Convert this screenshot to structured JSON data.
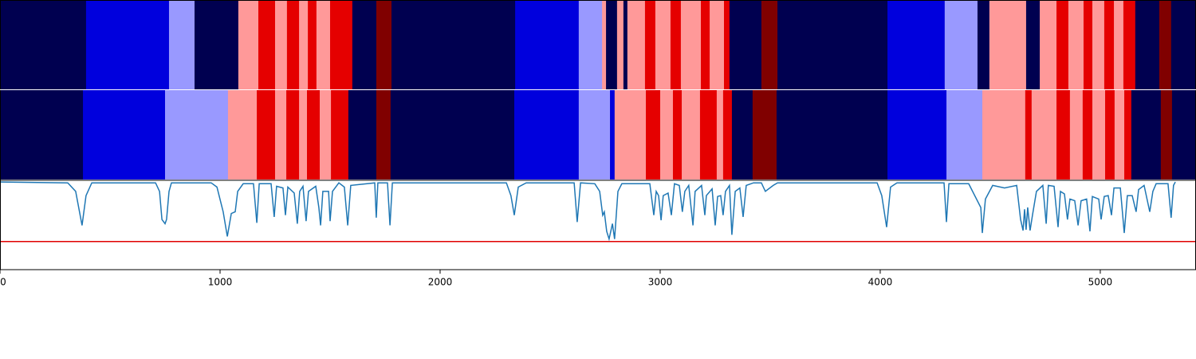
{
  "chart_data": {
    "type": "segments",
    "xlim": [
      0,
      5435
    ],
    "xticks": [
      0,
      1000,
      2000,
      3000,
      4000,
      5000
    ],
    "palette": [
      "#000050",
      "#0000dd",
      "#9999ff",
      "#ff9999",
      "#e50000",
      "#800000"
    ],
    "bands": [
      {
        "edges": [
          0,
          391,
          768,
          884,
          1083,
          1174,
          1250,
          1304,
          1359,
          1399,
          1438,
          1500,
          1601,
          1710,
          1779,
          2341,
          2630,
          2736,
          2754,
          2804,
          2833,
          2851,
          2931,
          2978,
          3047,
          3094,
          3185,
          3225,
          3290,
          3315,
          3460,
          3533,
          4033,
          4293,
          4442,
          4496,
          4663,
          4725,
          4801,
          4855,
          4924,
          4964,
          5018,
          5062,
          5105,
          5159,
          5268,
          5322,
          5435
        ],
        "states": [
          0,
          1,
          2,
          0,
          3,
          4,
          3,
          4,
          3,
          4,
          3,
          4,
          0,
          5,
          0,
          1,
          2,
          3,
          0,
          3,
          0,
          3,
          4,
          3,
          4,
          3,
          4,
          3,
          4,
          0,
          5,
          0,
          1,
          2,
          0,
          3,
          0,
          3,
          4,
          3,
          4,
          3,
          4,
          3,
          4,
          0,
          5,
          0
        ]
      },
      {
        "edges": [
          0,
          377,
          750,
          1036,
          1167,
          1250,
          1301,
          1359,
          1395,
          1453,
          1504,
          1583,
          1710,
          1775,
          2337,
          2630,
          2772,
          2793,
          2935,
          3000,
          3058,
          3098,
          3181,
          3257,
          3286,
          3326,
          3420,
          3529,
          4033,
          4301,
          4464,
          4659,
          4688,
          4801,
          4862,
          4920,
          4964,
          5022,
          5065,
          5109,
          5141,
          5275,
          5326,
          5435
        ],
        "states": [
          0,
          1,
          2,
          3,
          4,
          3,
          4,
          3,
          4,
          3,
          4,
          0,
          5,
          0,
          1,
          2,
          1,
          3,
          4,
          3,
          4,
          3,
          4,
          3,
          4,
          0,
          5,
          0,
          1,
          2,
          3,
          4,
          3,
          4,
          3,
          4,
          3,
          4,
          3,
          4,
          0,
          5,
          0
        ]
      }
    ],
    "line": {
      "color": "#1f77b4",
      "x": [
        0,
        308,
        344,
        373,
        391,
        417,
        707,
        725,
        736,
        750,
        757,
        768,
        779,
        960,
        986,
        1014,
        1033,
        1051,
        1069,
        1080,
        1105,
        1152,
        1167,
        1178,
        1232,
        1246,
        1257,
        1286,
        1297,
        1308,
        1337,
        1351,
        1362,
        1377,
        1391,
        1402,
        1435,
        1449,
        1457,
        1467,
        1493,
        1500,
        1511,
        1540,
        1565,
        1580,
        1594,
        1703,
        1710,
        1717,
        1761,
        1772,
        1783,
        2301,
        2322,
        2337,
        2355,
        2391,
        2609,
        2623,
        2638,
        2703,
        2725,
        2739,
        2746,
        2757,
        2768,
        2783,
        2793,
        2808,
        2826,
        2953,
        2971,
        2982,
        2993,
        3004,
        3014,
        3036,
        3051,
        3065,
        3087,
        3101,
        3112,
        3130,
        3149,
        3159,
        3188,
        3203,
        3210,
        3236,
        3250,
        3261,
        3275,
        3286,
        3297,
        3315,
        3326,
        3341,
        3362,
        3377,
        3391,
        3424,
        3460,
        3478,
        3514,
        3533,
        3986,
        4007,
        4029,
        4047,
        4076,
        4290,
        4301,
        4312,
        4348,
        4402,
        4457,
        4464,
        4478,
        4511,
        4565,
        4620,
        4638,
        4649,
        4656,
        4663,
        4670,
        4681,
        4692,
        4710,
        4739,
        4754,
        4764,
        4790,
        4808,
        4819,
        4837,
        4851,
        4862,
        4884,
        4899,
        4913,
        4938,
        4953,
        4964,
        4993,
        5004,
        5018,
        5036,
        5051,
        5062,
        5091,
        5109,
        5123,
        5145,
        5163,
        5174,
        5199,
        5225,
        5239,
        5254,
        5308,
        5322,
        5333,
        5341
      ],
      "values": [
        1.0,
        0.99,
        0.89,
        0.49,
        0.84,
        0.99,
        0.99,
        0.89,
        0.56,
        0.51,
        0.56,
        0.89,
        0.99,
        0.99,
        0.94,
        0.65,
        0.36,
        0.63,
        0.65,
        0.89,
        0.98,
        0.98,
        0.52,
        0.98,
        0.98,
        0.59,
        0.95,
        0.93,
        0.61,
        0.94,
        0.87,
        0.51,
        0.89,
        0.95,
        0.54,
        0.89,
        0.95,
        0.7,
        0.49,
        0.89,
        0.89,
        0.54,
        0.89,
        0.99,
        0.94,
        0.49,
        0.96,
        0.99,
        0.58,
        0.99,
        0.99,
        0.49,
        0.99,
        0.99,
        0.84,
        0.61,
        0.94,
        0.99,
        0.99,
        0.53,
        0.99,
        0.98,
        0.89,
        0.61,
        0.65,
        0.42,
        0.33,
        0.51,
        0.33,
        0.89,
        0.98,
        0.98,
        0.61,
        0.89,
        0.84,
        0.55,
        0.84,
        0.87,
        0.61,
        0.98,
        0.96,
        0.65,
        0.89,
        0.96,
        0.49,
        0.89,
        0.96,
        0.61,
        0.84,
        0.92,
        0.49,
        0.83,
        0.84,
        0.61,
        0.89,
        0.96,
        0.38,
        0.89,
        0.93,
        0.59,
        0.96,
        0.99,
        0.99,
        0.89,
        0.96,
        0.99,
        0.99,
        0.84,
        0.47,
        0.94,
        0.99,
        0.99,
        0.53,
        0.98,
        0.98,
        0.98,
        0.7,
        0.4,
        0.8,
        0.96,
        0.93,
        0.96,
        0.56,
        0.43,
        0.68,
        0.44,
        0.7,
        0.43,
        0.61,
        0.89,
        0.96,
        0.51,
        0.96,
        0.95,
        0.47,
        0.89,
        0.86,
        0.56,
        0.8,
        0.78,
        0.49,
        0.78,
        0.8,
        0.42,
        0.83,
        0.8,
        0.56,
        0.83,
        0.84,
        0.61,
        0.93,
        0.93,
        0.4,
        0.84,
        0.84,
        0.65,
        0.91,
        0.96,
        0.65,
        0.89,
        0.98,
        0.98,
        0.58,
        0.96,
        1.0
      ]
    },
    "ylim": [
      -0.03,
      1.02
    ],
    "threshold": {
      "value": 0.3,
      "color": "#e00000"
    }
  }
}
